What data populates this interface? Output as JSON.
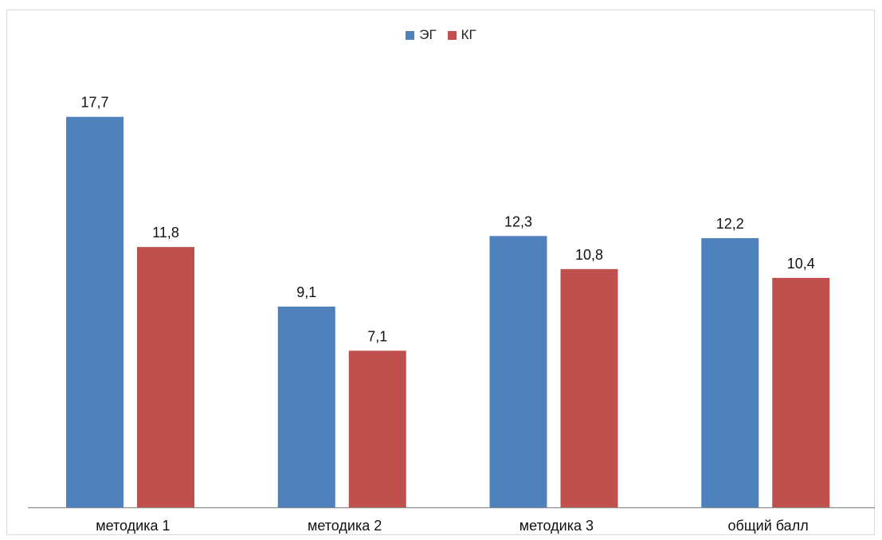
{
  "chart_data": {
    "type": "bar",
    "categories": [
      "методика 1",
      "методика 2",
      "методика 3",
      "общий балл"
    ],
    "series": [
      {
        "name": "ЭГ",
        "values": [
          17.7,
          9.1,
          12.3,
          12.2
        ],
        "color": "#4F81BD",
        "labels": [
          "17,7",
          "9,1",
          "12,3",
          "12,2"
        ]
      },
      {
        "name": "КГ",
        "values": [
          11.8,
          7.1,
          10.8,
          10.4
        ],
        "color": "#C0504D",
        "labels": [
          "11,8",
          "7,1",
          "10,8",
          "10,4"
        ]
      }
    ],
    "ylim": [
      0,
      20
    ],
    "grid": false,
    "legend_position": "top-center",
    "axis_color": "#8c8c8c"
  }
}
